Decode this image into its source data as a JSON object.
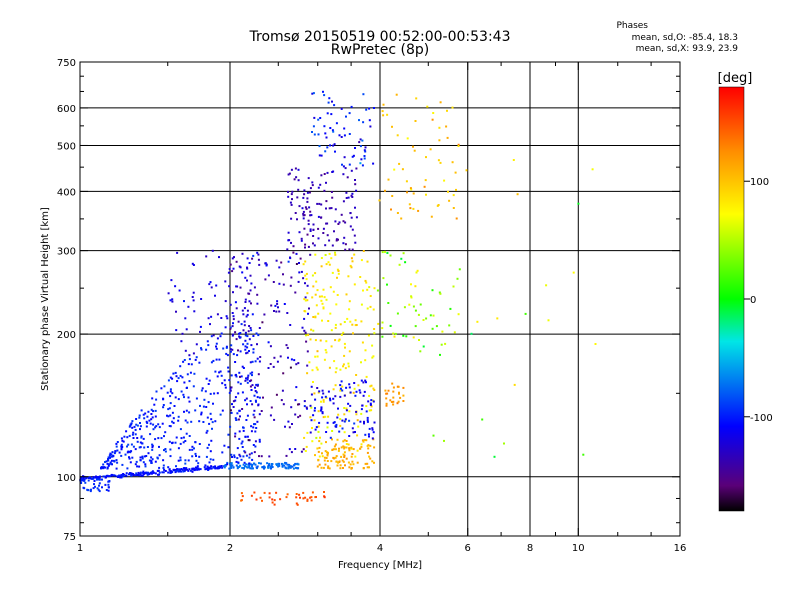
{
  "chart_data": {
    "type": "scatter",
    "title": "Tromsø 20150519 00:52:00-00:53:43",
    "subtitle": "RwPretec (8p)",
    "xlabel": "Frequency [MHz]",
    "ylabel": "Stationary phase Virtual Height [km]",
    "x_scale": "log",
    "y_scale": "log",
    "xlim": [
      1,
      16
    ],
    "ylim": [
      75,
      750
    ],
    "x_ticks": [
      1,
      2,
      4,
      6,
      8,
      10,
      16
    ],
    "x_minor_ticks": [
      1.5,
      2.5,
      3,
      3.5,
      5,
      7,
      9,
      12,
      14
    ],
    "y_ticks": [
      75,
      100,
      200,
      300,
      400,
      500,
      600,
      750
    ],
    "y_minor_ticks": [
      80,
      90,
      150,
      250,
      350,
      450,
      550,
      650,
      700
    ],
    "grid": true,
    "colorbar": {
      "label": "[deg]",
      "ticks": [
        100,
        0,
        -100
      ],
      "range": [
        -180,
        180
      ]
    },
    "stats": {
      "heading": "Phases",
      "line1": "mean, sd,O: -85.4, 18.3",
      "line2": "mean, sd,X:  93.9, 23.9"
    },
    "clusters": [
      {
        "fmin": 1.0,
        "fmax": 1.95,
        "hmin": 99,
        "hmax": 105,
        "n": 220,
        "phase": -105,
        "spread": 15,
        "shape": "band"
      },
      {
        "fmin": 1.0,
        "fmax": 1.15,
        "hmin": 93,
        "hmax": 99,
        "n": 40,
        "phase": -95,
        "spread": 15,
        "shape": "box"
      },
      {
        "fmin": 1.95,
        "fmax": 2.75,
        "hmin": 104,
        "hmax": 107,
        "n": 110,
        "phase": -75,
        "spread": 12,
        "shape": "box"
      },
      {
        "fmin": 1.1,
        "fmax": 2.3,
        "hmin": 104,
        "hmax": 210,
        "n": 480,
        "phase": -100,
        "spread": 18,
        "shape": "wedge"
      },
      {
        "fmin": 1.5,
        "fmax": 2.2,
        "hmin": 180,
        "hmax": 300,
        "n": 80,
        "phase": -120,
        "spread": 25,
        "shape": "box"
      },
      {
        "fmin": 2.0,
        "fmax": 2.9,
        "hmin": 110,
        "hmax": 300,
        "n": 200,
        "phase": -130,
        "spread": 50,
        "shape": "box"
      },
      {
        "fmin": 2.6,
        "fmax": 3.6,
        "hmin": 300,
        "hmax": 450,
        "n": 140,
        "phase": -135,
        "spread": 25,
        "shape": "box"
      },
      {
        "fmin": 2.9,
        "fmax": 3.9,
        "hmin": 450,
        "hmax": 650,
        "n": 70,
        "phase": -100,
        "spread": 50,
        "shape": "box"
      },
      {
        "fmin": 2.8,
        "fmax": 3.9,
        "hmin": 110,
        "hmax": 300,
        "n": 220,
        "phase": 80,
        "spread": 35,
        "shape": "box"
      },
      {
        "fmin": 3.0,
        "fmax": 3.9,
        "hmin": 104,
        "hmax": 120,
        "n": 100,
        "phase": 110,
        "spread": 15,
        "shape": "box"
      },
      {
        "fmin": 2.9,
        "fmax": 3.9,
        "hmin": 120,
        "hmax": 160,
        "n": 100,
        "phase": -110,
        "spread": 25,
        "shape": "box"
      },
      {
        "fmin": 2.1,
        "fmax": 3.2,
        "hmin": 87,
        "hmax": 93,
        "n": 40,
        "phase": 150,
        "spread": 20,
        "shape": "box"
      },
      {
        "fmin": 3.9,
        "fmax": 5.8,
        "hmin": 350,
        "hmax": 640,
        "n": 60,
        "phase": 100,
        "spread": 40,
        "shape": "box"
      },
      {
        "fmin": 3.9,
        "fmax": 5.8,
        "hmin": 180,
        "hmax": 300,
        "n": 60,
        "phase": 40,
        "spread": 80,
        "shape": "box"
      },
      {
        "fmin": 4.1,
        "fmax": 4.5,
        "hmin": 140,
        "hmax": 158,
        "n": 25,
        "phase": 120,
        "spread": 20,
        "shape": "box"
      },
      {
        "fmin": 5.0,
        "fmax": 12.0,
        "hmin": 110,
        "hmax": 500,
        "n": 22,
        "phase": 60,
        "spread": 100,
        "shape": "box"
      }
    ]
  }
}
